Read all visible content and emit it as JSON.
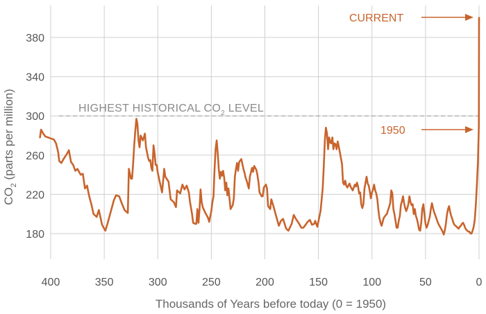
{
  "chart_data": {
    "type": "line",
    "xlabel": "Thousands of Years before today (0 = 1950)",
    "ylabel": {
      "main": "CO",
      "sub": "2",
      "rest": " (parts per million)"
    },
    "xlim": [
      410,
      0
    ],
    "ylim": [
      165,
      410
    ],
    "x_ticks": [
      400,
      350,
      300,
      250,
      200,
      150,
      100,
      50,
      0
    ],
    "y_ticks": [
      180,
      220,
      260,
      300,
      340,
      380
    ],
    "grid": true,
    "reference_line": {
      "y": 300,
      "label_pre": "HIGHEST HISTORICAL CO",
      "label_sub": "2",
      "label_post": " LEVEL"
    },
    "annotations": {
      "current": "CURRENT",
      "y1950": "1950"
    },
    "color": "#c8642c",
    "series": [
      {
        "values": [
          [
            410,
            278
          ],
          [
            409,
            286
          ],
          [
            407,
            282
          ],
          [
            405,
            279
          ],
          [
            400,
            277
          ],
          [
            397,
            276
          ],
          [
            395,
            272
          ],
          [
            393,
            263
          ],
          [
            392,
            254
          ],
          [
            390,
            252
          ],
          [
            388,
            256
          ],
          [
            385,
            261
          ],
          [
            383,
            265
          ],
          [
            381,
            253
          ],
          [
            379,
            250
          ],
          [
            377,
            244
          ],
          [
            375,
            246
          ],
          [
            372,
            240
          ],
          [
            370,
            241
          ],
          [
            368,
            226
          ],
          [
            366,
            229
          ],
          [
            364,
            218
          ],
          [
            362,
            210
          ],
          [
            360,
            200
          ],
          [
            357,
            197
          ],
          [
            355,
            204
          ],
          [
            352,
            189
          ],
          [
            349,
            183
          ],
          [
            347,
            190
          ],
          [
            344,
            202
          ],
          [
            341,
            214
          ],
          [
            339,
            219
          ],
          [
            336,
            218
          ],
          [
            334,
            212
          ],
          [
            331,
            204
          ],
          [
            328,
            201
          ],
          [
            327,
            246
          ],
          [
            325,
            236
          ],
          [
            324,
            236
          ],
          [
            323,
            252
          ],
          [
            322,
            270
          ],
          [
            321,
            285
          ],
          [
            320,
            297
          ],
          [
            319,
            292
          ],
          [
            318,
            275
          ],
          [
            317,
            268
          ],
          [
            316,
            280
          ],
          [
            314,
            275
          ],
          [
            313,
            278
          ],
          [
            312,
            282
          ],
          [
            311,
            268
          ],
          [
            309,
            257
          ],
          [
            308,
            254
          ],
          [
            307,
            255
          ],
          [
            306,
            247
          ],
          [
            305,
            244
          ],
          [
            304,
            270
          ],
          [
            303,
            262
          ],
          [
            302,
            250
          ],
          [
            301,
            250
          ],
          [
            300,
            242
          ],
          [
            298,
            232
          ],
          [
            297,
            227
          ],
          [
            296,
            222
          ],
          [
            295,
            234
          ],
          [
            294,
            246
          ],
          [
            293,
            238
          ],
          [
            290,
            233
          ],
          [
            288,
            215
          ],
          [
            285,
            212
          ],
          [
            283,
            207
          ],
          [
            282,
            224
          ],
          [
            279,
            221
          ],
          [
            277,
            230
          ],
          [
            275,
            225
          ],
          [
            273,
            229
          ],
          [
            271,
            222
          ],
          [
            270,
            213
          ],
          [
            268,
            200
          ],
          [
            267,
            191
          ],
          [
            265,
            190
          ],
          [
            264,
            190
          ],
          [
            263,
            205
          ],
          [
            262,
            191
          ],
          [
            261,
            205
          ],
          [
            260,
            225
          ],
          [
            259,
            212
          ],
          [
            258,
            207
          ],
          [
            256,
            202
          ],
          [
            253,
            196
          ],
          [
            252,
            192
          ],
          [
            250,
            203
          ],
          [
            249,
            212
          ],
          [
            248,
            218
          ],
          [
            247,
            245
          ],
          [
            246,
            266
          ],
          [
            245,
            275
          ],
          [
            244,
            262
          ],
          [
            243,
            245
          ],
          [
            242,
            236
          ],
          [
            241,
            243
          ],
          [
            240,
            239
          ],
          [
            239,
            244
          ],
          [
            238,
            237
          ],
          [
            237,
            224
          ],
          [
            236,
            232
          ],
          [
            235,
            219
          ],
          [
            234,
            226
          ],
          [
            232,
            205
          ],
          [
            230,
            209
          ],
          [
            229,
            216
          ],
          [
            228,
            238
          ],
          [
            227,
            246
          ],
          [
            226,
            252
          ],
          [
            225,
            244
          ],
          [
            224,
            253
          ],
          [
            222,
            256
          ],
          [
            220,
            246
          ],
          [
            219,
            242
          ],
          [
            218,
            237
          ],
          [
            217,
            234
          ],
          [
            216,
            230
          ],
          [
            215,
            226
          ],
          [
            214,
            238
          ],
          [
            212,
            247
          ],
          [
            211,
            243
          ],
          [
            210,
            249
          ],
          [
            208,
            245
          ],
          [
            207,
            240
          ],
          [
            206,
            233
          ],
          [
            205,
            222
          ],
          [
            203,
            218
          ],
          [
            202,
            218
          ],
          [
            201,
            227
          ],
          [
            199,
            230
          ],
          [
            198,
            226
          ],
          [
            197,
            208
          ],
          [
            195,
            205
          ],
          [
            194,
            215
          ],
          [
            192,
            208
          ],
          [
            190,
            200
          ],
          [
            189,
            196
          ],
          [
            187,
            188
          ],
          [
            185,
            193
          ],
          [
            183,
            195
          ],
          [
            181,
            188
          ],
          [
            180,
            185
          ],
          [
            178,
            183
          ],
          [
            175,
            190
          ],
          [
            173,
            199
          ],
          [
            171,
            195
          ],
          [
            168,
            190
          ],
          [
            166,
            186
          ],
          [
            164,
            186
          ],
          [
            162,
            189
          ],
          [
            160,
            192
          ],
          [
            158,
            194
          ],
          [
            156,
            189
          ],
          [
            154,
            190
          ],
          [
            153,
            193
          ],
          [
            152,
            190
          ],
          [
            151,
            187
          ],
          [
            149,
            198
          ],
          [
            148,
            203
          ],
          [
            146,
            226
          ],
          [
            145,
            248
          ],
          [
            144,
            275
          ],
          [
            143,
            288
          ],
          [
            142,
            282
          ],
          [
            141,
            266
          ],
          [
            140,
            278
          ],
          [
            139,
            273
          ],
          [
            138,
            272
          ],
          [
            137,
            278
          ],
          [
            136,
            266
          ],
          [
            135,
            272
          ],
          [
            134,
            271
          ],
          [
            133,
            266
          ],
          [
            132,
            274
          ],
          [
            131,
            269
          ],
          [
            130,
            263
          ],
          [
            129,
            257
          ],
          [
            128,
            251
          ],
          [
            127,
            232
          ],
          [
            126,
            230
          ],
          [
            125,
            234
          ],
          [
            124,
            229
          ],
          [
            123,
            227
          ],
          [
            121,
            231
          ],
          [
            120,
            228
          ],
          [
            118,
            224
          ],
          [
            116,
            230
          ],
          [
            115,
            228
          ],
          [
            114,
            232
          ],
          [
            113,
            228
          ],
          [
            112,
            221
          ],
          [
            111,
            222
          ],
          [
            110,
            210
          ],
          [
            109,
            206
          ],
          [
            108,
            210
          ],
          [
            107,
            226
          ],
          [
            106,
            232
          ],
          [
            105,
            238
          ],
          [
            104,
            231
          ],
          [
            103,
            229
          ],
          [
            102,
            223
          ],
          [
            101,
            216
          ],
          [
            100,
            222
          ],
          [
            99,
            225
          ],
          [
            98,
            230
          ],
          [
            97,
            224
          ],
          [
            96,
            221
          ],
          [
            95,
            215
          ],
          [
            94,
            204
          ],
          [
            93,
            196
          ],
          [
            92,
            191
          ],
          [
            91,
            188
          ],
          [
            89,
            196
          ],
          [
            87,
            199
          ],
          [
            86,
            200
          ],
          [
            85,
            204
          ],
          [
            84,
            207
          ],
          [
            83,
            211
          ],
          [
            82,
            224
          ],
          [
            81,
            221
          ],
          [
            80,
            205
          ],
          [
            79,
            200
          ],
          [
            78,
            193
          ],
          [
            77,
            186
          ],
          [
            76,
            186
          ],
          [
            75,
            193
          ],
          [
            74,
            198
          ],
          [
            73,
            209
          ],
          [
            72,
            213
          ],
          [
            71,
            218
          ],
          [
            70,
            211
          ],
          [
            69,
            206
          ],
          [
            68,
            203
          ],
          [
            67,
            206
          ],
          [
            66,
            210
          ],
          [
            65,
            218
          ],
          [
            64,
            212
          ],
          [
            63,
            209
          ],
          [
            62,
            210
          ],
          [
            61,
            200
          ],
          [
            60,
            205
          ],
          [
            59,
            198
          ],
          [
            58,
            195
          ],
          [
            57,
            190
          ],
          [
            56,
            184
          ],
          [
            55,
            183
          ],
          [
            54,
            191
          ],
          [
            53,
            205
          ],
          [
            52,
            210
          ],
          [
            51,
            200
          ],
          [
            50,
            190
          ],
          [
            49,
            186
          ],
          [
            48,
            189
          ],
          [
            47,
            193
          ],
          [
            46,
            197
          ],
          [
            45,
            205
          ],
          [
            44,
            211
          ],
          [
            43,
            206
          ],
          [
            42,
            202
          ],
          [
            41,
            199
          ],
          [
            40,
            196
          ],
          [
            39,
            193
          ],
          [
            38,
            190
          ],
          [
            37,
            188
          ],
          [
            36,
            186
          ],
          [
            35,
            184
          ],
          [
            34,
            182
          ],
          [
            33,
            179
          ],
          [
            32,
            183
          ],
          [
            31,
            190
          ],
          [
            30,
            199
          ],
          [
            29,
            205
          ],
          [
            28,
            208
          ],
          [
            27,
            202
          ],
          [
            26,
            198
          ],
          [
            25,
            195
          ],
          [
            24,
            191
          ],
          [
            23,
            189
          ],
          [
            22,
            188
          ],
          [
            21,
            187
          ],
          [
            20,
            186
          ],
          [
            19,
            185
          ],
          [
            18,
            187
          ],
          [
            17,
            188
          ],
          [
            16,
            190
          ],
          [
            15,
            191
          ],
          [
            14,
            189
          ],
          [
            13,
            186
          ],
          [
            12,
            184
          ],
          [
            11,
            183
          ],
          [
            10,
            182
          ],
          [
            9,
            182
          ],
          [
            8,
            180
          ],
          [
            7,
            180
          ],
          [
            6,
            183
          ],
          [
            5,
            187
          ],
          [
            4,
            194
          ],
          [
            3,
            210
          ],
          [
            2,
            230
          ],
          [
            1,
            255
          ],
          [
            0.8,
            265
          ],
          [
            0.6,
            272
          ],
          [
            0.5,
            275
          ],
          [
            0.4,
            280
          ],
          [
            0.3,
            284
          ],
          [
            0.2,
            290
          ],
          [
            0.1,
            320
          ],
          [
            0.05,
            360
          ],
          [
            0,
            400
          ]
        ]
      }
    ]
  }
}
